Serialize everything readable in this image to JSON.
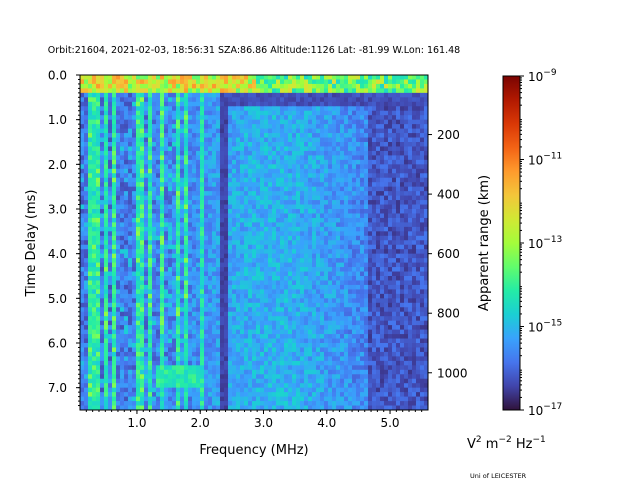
{
  "chart_data": {
    "type": "heatmap",
    "title": "Orbit:21604, 2021-02-03, 18:56:31 SZA:86.86 Altitude:1126 Lat: -81.99 W.Lon: 161.48",
    "xlabel": "Frequency (MHz)",
    "ylabel": "Time Delay (ms)",
    "y2label": "Apparent range (km)",
    "xlim": [
      0.1,
      5.6
    ],
    "ylim": [
      7.5,
      0.0
    ],
    "y2lim": [
      0,
      1125
    ],
    "x_ticks": [
      1.0,
      2.0,
      3.0,
      4.0,
      5.0
    ],
    "x_tick_labels": [
      "1.0",
      "2.0",
      "3.0",
      "4.0",
      "5.0"
    ],
    "y_ticks": [
      0.0,
      1.0,
      2.0,
      3.0,
      4.0,
      5.0,
      6.0,
      7.0
    ],
    "y_tick_labels": [
      "0.0",
      "1.0",
      "2.0",
      "3.0",
      "4.0",
      "5.0",
      "6.0",
      "7.0"
    ],
    "y2_ticks": [
      200,
      400,
      600,
      800,
      1000
    ],
    "y2_tick_labels": [
      "200",
      "400",
      "600",
      "800",
      "1000"
    ],
    "colorbar": {
      "scale": "log",
      "range": [
        1e-17,
        1e-09
      ],
      "tick_labels": [
        {
          "value": -17,
          "base": "10",
          "exp": "−17"
        },
        {
          "value": -15,
          "base": "10",
          "exp": "−15"
        },
        {
          "value": -13,
          "base": "10",
          "exp": "−13"
        },
        {
          "value": -11,
          "base": "10",
          "exp": "−11"
        },
        {
          "value": -9,
          "base": "10",
          "exp": "−9"
        }
      ],
      "colormap": [
        "#30123b",
        "#4145ab",
        "#4675ed",
        "#39a2fc",
        "#1bcfd4",
        "#24eca6",
        "#61fc6c",
        "#a4fc3b",
        "#d1e834",
        "#f3c63a",
        "#fe9b2d",
        "#f36315",
        "#d93806",
        "#b11901",
        "#7a0402"
      ]
    },
    "unit_label": {
      "v": "V",
      "sq": "2",
      "m": " m",
      "m_exp": "−2",
      "hz": " Hz",
      "hz_exp": "−1"
    },
    "grid": false
  },
  "footer": {
    "credit": "Uni of LEICESTER"
  }
}
